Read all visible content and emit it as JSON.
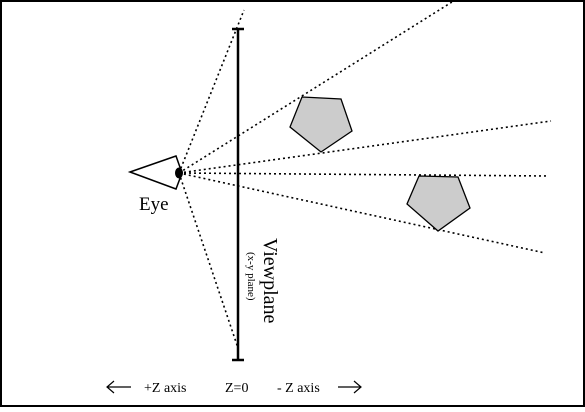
{
  "labels": {
    "eye": "Eye",
    "viewplane": "Viewplane",
    "viewplane_sub": "(x-y plane)",
    "plus_z": "+Z axis",
    "z_zero": "Z=0",
    "minus_z": "- Z axis"
  },
  "colors": {
    "line": "#000000",
    "shape_fill": "#cccccc",
    "background": "#ffffff"
  },
  "icons": {
    "left_arrow": "arrow-left-icon",
    "right_arrow": "arrow-right-icon"
  }
}
